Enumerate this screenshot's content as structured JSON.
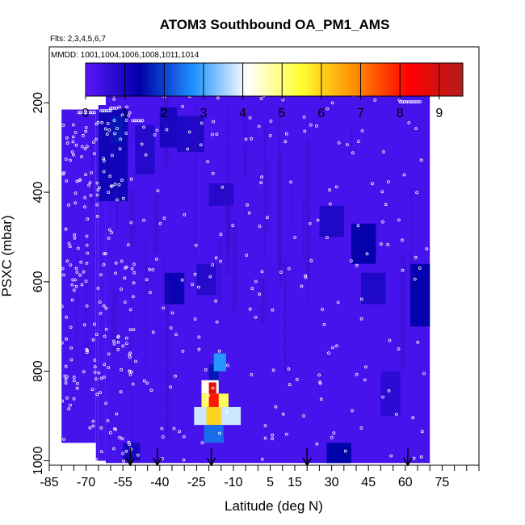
{
  "chart_data": {
    "type": "heatmap",
    "title": "ATOM3 Southbound OA_PM1_AMS",
    "flights_note": "Flts: 2,3,4,5,6,7",
    "dates_note": "MMDD: 1001,1004,1006,1008,1011,1014",
    "xlabel": "Latitude (deg N)",
    "ylabel": "PSXC (mbar)",
    "xlim": [
      -85,
      90
    ],
    "ylim": [
      1010,
      75
    ],
    "x_ticks": [
      "-85",
      "-70",
      "-55",
      "-40",
      "-25",
      "-10",
      "5",
      "15",
      "30",
      "45",
      "60",
      "75"
    ],
    "x_tick_values": [
      -85,
      -70,
      -55,
      -40,
      -25,
      -10,
      5,
      15,
      30,
      45,
      60,
      75
    ],
    "y_ticks": [
      "200",
      "400",
      "600",
      "800",
      "1000"
    ],
    "y_tick_values": [
      200,
      400,
      600,
      800,
      1000
    ],
    "colorbar": {
      "min": 0,
      "max": 9.6,
      "tick_labels": [
        "0",
        "1",
        "2",
        "3",
        "4",
        "5",
        "6",
        "7",
        "8",
        "9"
      ],
      "tick_values": [
        0,
        1,
        2,
        3,
        4,
        5,
        6,
        7,
        8,
        9
      ],
      "colors": [
        "#5a18ff",
        "#0000a8",
        "#1e90ff",
        "#ffffff",
        "#ffff30",
        "#ff8c00",
        "#ff0000",
        "#b21c1c"
      ]
    },
    "background_value": 0.3,
    "data_extent": [
      {
        "x0": -80,
        "x1": -66,
        "p0": 215,
        "p1": 960
      },
      {
        "x0": -66,
        "x1": -65,
        "p0": 215,
        "p1": 1000
      },
      {
        "x0": -65,
        "x1": -62,
        "p0": 205,
        "p1": 1000
      },
      {
        "x0": -62,
        "x1": 70,
        "p0": 165,
        "p1": 1005
      }
    ],
    "features": [
      {
        "x0": -65,
        "x1": -53,
        "p0": 215,
        "p1": 420,
        "value": 1.1
      },
      {
        "x0": -60,
        "x1": -55,
        "p0": 230,
        "p1": 290,
        "value": 1.6
      },
      {
        "x0": -50,
        "x1": -42,
        "p0": 250,
        "p1": 360,
        "value": 0.8
      },
      {
        "x0": -40,
        "x1": -33,
        "p0": 210,
        "p1": 300,
        "value": 1.0
      },
      {
        "x0": -33,
        "x1": -22,
        "p0": 230,
        "p1": 310,
        "value": 0.9
      },
      {
        "x0": -38,
        "x1": -30,
        "p0": 580,
        "p1": 650,
        "value": 1.2
      },
      {
        "x0": -25,
        "x1": -17,
        "p0": 560,
        "p1": 630,
        "value": 0.8
      },
      {
        "x0": -20,
        "x1": -10,
        "p0": 380,
        "p1": 430,
        "value": 0.8
      },
      {
        "x0": 25,
        "x1": 35,
        "p0": 430,
        "p1": 500,
        "value": 0.9
      },
      {
        "x0": 38,
        "x1": 48,
        "p0": 470,
        "p1": 560,
        "value": 1.3
      },
      {
        "x0": 42,
        "x1": 52,
        "p0": 580,
        "p1": 650,
        "value": 0.9
      },
      {
        "x0": 50,
        "x1": 58,
        "p0": 800,
        "p1": 900,
        "value": 0.7
      },
      {
        "x0": 62,
        "x1": 70,
        "p0": 560,
        "p1": 700,
        "value": 1.3
      },
      {
        "x0": 28,
        "x1": 38,
        "p0": 960,
        "p1": 1005,
        "value": 1.4
      },
      {
        "x0": -55,
        "x1": -48,
        "p0": 960,
        "p1": 1000,
        "value": 1.0
      },
      {
        "x0": -20,
        "x1": -16,
        "p0": 785,
        "p1": 825,
        "value": 1.6
      },
      {
        "x0": -18,
        "x1": -13,
        "p0": 760,
        "p1": 800,
        "value": 2.8
      },
      {
        "x0": -23,
        "x1": -16,
        "p0": 820,
        "p1": 850,
        "value": 4.2
      },
      {
        "x0": -20,
        "x1": -17,
        "p0": 825,
        "p1": 850,
        "value": 8.8
      },
      {
        "x0": -23,
        "x1": -12,
        "p0": 850,
        "p1": 880,
        "value": 5.2
      },
      {
        "x0": -20,
        "x1": -16,
        "p0": 850,
        "p1": 880,
        "value": 8.0
      },
      {
        "x0": -26,
        "x1": -7,
        "p0": 880,
        "p1": 920,
        "value": 3.8
      },
      {
        "x0": -21,
        "x1": -15,
        "p0": 880,
        "p1": 920,
        "value": 6.0
      },
      {
        "x0": -22,
        "x1": -14,
        "p0": 920,
        "p1": 960,
        "value": 2.4
      }
    ],
    "arrow_latitudes": [
      -52,
      -41,
      -19,
      20,
      61
    ]
  }
}
